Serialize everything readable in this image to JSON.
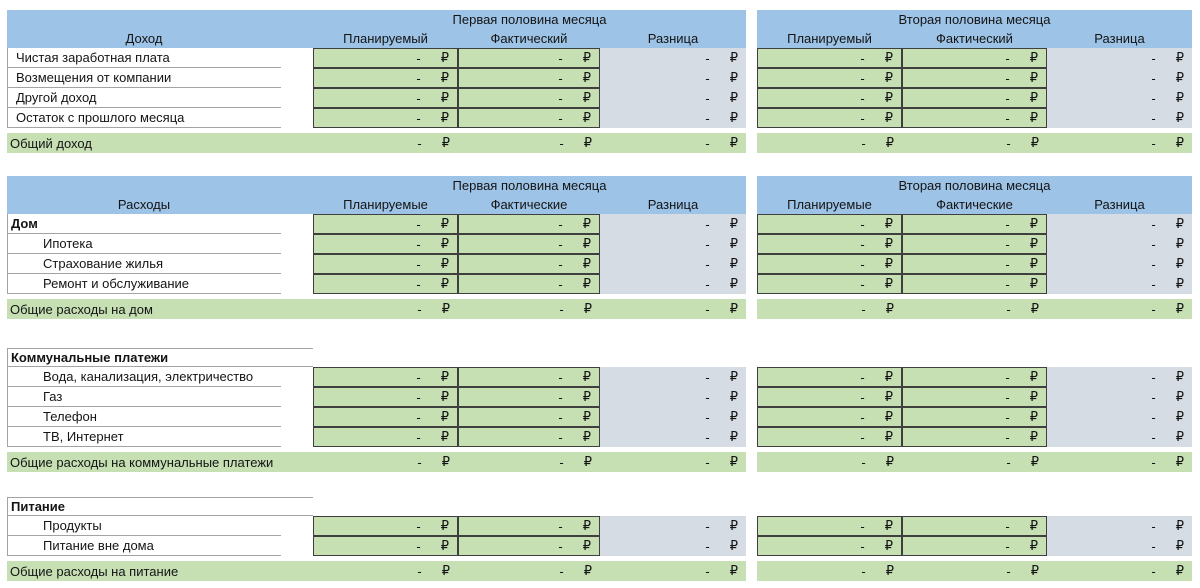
{
  "colors": {
    "header_blue": "#9DC3E6",
    "cell_green": "#C6E0B4",
    "difference_grey": "#D6DCE4",
    "cell_border": "#3f3f3f"
  },
  "v": {
    "d": "-",
    "r": "₽"
  },
  "headers": {
    "first_half": "Первая половина месяца",
    "second_half": "Вторая половина месяца",
    "income_label": "Доход",
    "expenses_label": "Расходы",
    "planned_income": "Планируемый",
    "actual_income": "Фактический",
    "planned_expenses": "Планируемые",
    "actual_expenses": "Фактические",
    "diff": "Разница"
  },
  "income": {
    "rows": [
      "Чистая заработная плата",
      "Возмещения от компании",
      "Другой доход",
      "Остаток с прошлого месяца"
    ],
    "total": "Общий доход"
  },
  "home": {
    "category": "Дом",
    "rows": [
      "Ипотека",
      "Страхование жилья",
      "Ремонт и обслуживание"
    ],
    "total": "Общие расходы на дом"
  },
  "utilities": {
    "category": "Коммунальные платежи",
    "rows": [
      "Вода, канализация, электричество",
      "Газ",
      "Телефон",
      "ТВ, Интернет"
    ],
    "total": "Общие расходы на коммунальные платежи"
  },
  "food": {
    "category": "Питание",
    "rows": [
      "Продукты",
      "Питание вне дома"
    ],
    "total": "Общие расходы на питание"
  }
}
